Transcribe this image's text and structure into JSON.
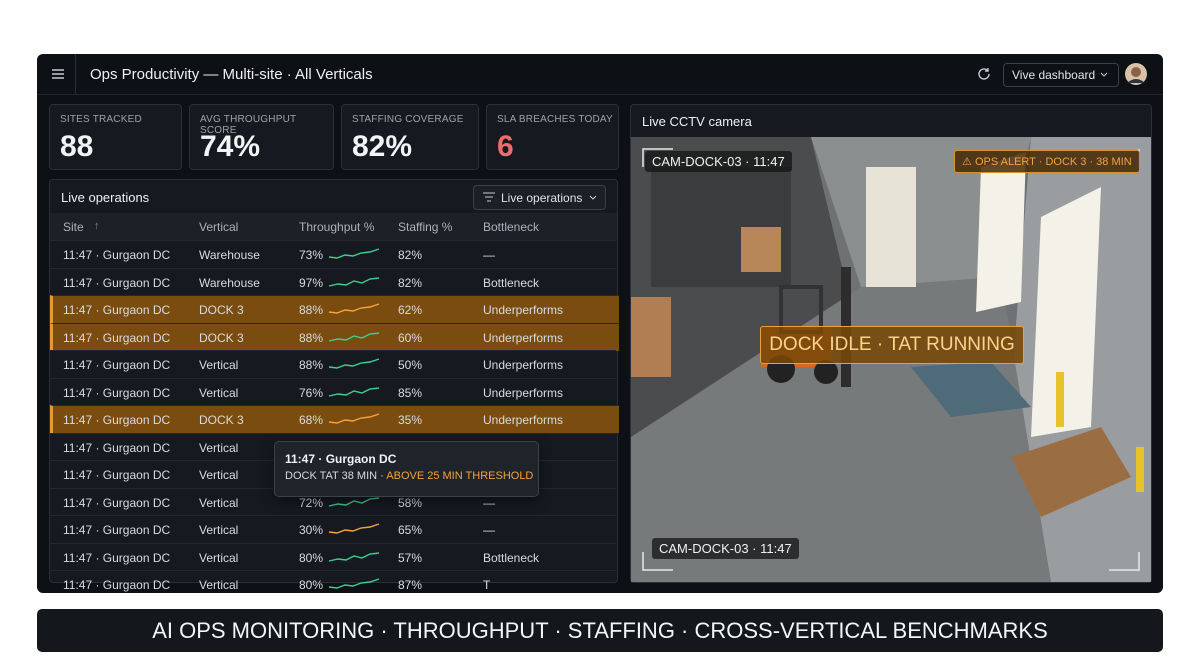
{
  "header": {
    "title": "Ops Productivity — Multi-site · All Verticals",
    "dashboard_button": "Vive dashboard"
  },
  "kpis": [
    {
      "label": "SITES TRACKED",
      "value": "88"
    },
    {
      "label": "AVG THROUGHPUT SCORE",
      "value": "74%"
    },
    {
      "label": "STAFFING COVERAGE",
      "value": "82%"
    },
    {
      "label": "SLA BREACHES TODAY",
      "value": "6",
      "color": "#f26b6b"
    }
  ],
  "table": {
    "title": "Live operations",
    "filter": "Live operations",
    "columns": [
      "Site",
      "Vertical",
      "Throughput %",
      "Staffing %",
      "Bottleneck"
    ],
    "rows": [
      {
        "cells": [
          "11:47 · Gurgaon DC",
          "Warehouse",
          "73%",
          "82%",
          "—"
        ],
        "highlight": false,
        "spark_color": "#3ecf8e"
      },
      {
        "cells": [
          "11:47 · Gurgaon DC",
          "Warehouse",
          "97%",
          "82%",
          "Bottleneck"
        ],
        "highlight": false,
        "spark_color": "#3ecf8e"
      },
      {
        "cells": [
          "11:47 · Gurgaon DC",
          "DOCK 3",
          "88%",
          "62%",
          "Underperforms"
        ],
        "highlight": true,
        "spark_color": "#f5a33a"
      },
      {
        "cells": [
          "11:47 · Gurgaon DC",
          "DOCK 3",
          "88%",
          "60%",
          "Underperforms"
        ],
        "highlight": true,
        "spark_color": "#3ecf8e"
      },
      {
        "cells": [
          "11:47 · Gurgaon DC",
          "Vertical",
          "88%",
          "50%",
          "Underperforms"
        ],
        "highlight": false,
        "spark_color": "#3ecf8e"
      },
      {
        "cells": [
          "11:47 · Gurgaon DC",
          "Vertical",
          "76%",
          "85%",
          "Underperforms"
        ],
        "highlight": false,
        "spark_color": "#3ecf8e"
      },
      {
        "cells": [
          "11:47 · Gurgaon DC",
          "DOCK 3",
          "68%",
          "35%",
          "Underperforms"
        ],
        "highlight": true,
        "spark_color": "#f5a33a"
      },
      {
        "cells": [
          "11:47 · Gurgaon DC",
          "Vertical"
        ],
        "highlight": false,
        "spark_color": "#3ecf8e"
      },
      {
        "cells": [
          "11:47 · Gurgaon DC",
          "Vertical"
        ],
        "highlight": false,
        "spark_color": "#3ecf8e"
      },
      {
        "cells": [
          "11:47 · Gurgaon DC",
          "Vertical",
          "72%",
          "58%",
          "—"
        ],
        "highlight": false,
        "spark_color": "#3ecf8e"
      },
      {
        "cells": [
          "11:47 · Gurgaon DC",
          "Vertical",
          "30%",
          "65%",
          "—"
        ],
        "highlight": false,
        "spark_color": "#f5a33a"
      },
      {
        "cells": [
          "11:47 · Gurgaon DC",
          "Vertical",
          "80%",
          "57%",
          "Bottleneck"
        ],
        "highlight": false,
        "spark_color": "#3ecf8e"
      },
      {
        "cells": [
          "11:47 · Gurgaon DC",
          "Vertical",
          "80%",
          "87%",
          "T"
        ],
        "highlight": false,
        "spark_color": "#3ecf8e"
      }
    ]
  },
  "tooltip": {
    "title": "11:47 · Gurgaon DC",
    "text": "DOCK TAT 38 MIN ·",
    "alert": "ABOVE 25 MIN THRESHOLD"
  },
  "camera": {
    "title": "Live CCTV camera",
    "cam_label_top": "CAM-DOCK-03 · 11:47",
    "alert": "OPS ALERT · DOCK 3 · 38 MIN",
    "overlay": "DOCK IDLE · TAT RUNNING",
    "cam_label_bottom": "CAM-DOCK-03 · 11:47"
  },
  "banner": "AI OPS MONITORING · THROUGHPUT · STAFFING · CROSS-VERTICAL BENCHMARKS"
}
